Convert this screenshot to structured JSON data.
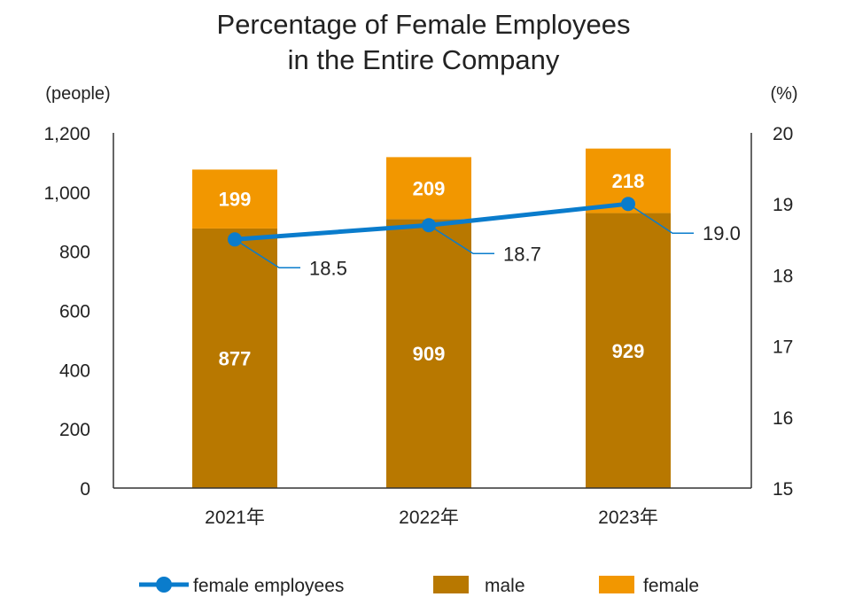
{
  "chart_data": {
    "type": "bar",
    "title_lines": [
      "Percentage of Female Employees",
      "in the Entire Company"
    ],
    "categories": [
      "2021年",
      "2022年",
      "2023年"
    ],
    "y_left": {
      "unit": "(people)",
      "ylim": [
        0,
        1200
      ],
      "ticks": [
        0,
        200,
        400,
        600,
        800,
        1000,
        1200
      ],
      "tick_labels": [
        "0",
        "200",
        "400",
        "600",
        "800",
        "1,000",
        "1,200"
      ]
    },
    "y_right": {
      "unit": "(%)",
      "ylim": [
        15,
        20
      ],
      "ticks": [
        15,
        16,
        17,
        18,
        19,
        20
      ]
    },
    "stacked": true,
    "series": [
      {
        "name": "male",
        "kind": "bar",
        "color": "#b87800",
        "values": [
          877,
          909,
          929
        ],
        "labels": [
          "877",
          "909",
          "929"
        ]
      },
      {
        "name": "female",
        "kind": "bar",
        "color": "#f29700",
        "values": [
          199,
          209,
          218
        ],
        "labels": [
          "199",
          "209",
          "218"
        ]
      },
      {
        "name": "female employees",
        "kind": "line",
        "axis": "right",
        "color": "#0a7ccc",
        "values": [
          18.5,
          18.7,
          19.0
        ],
        "labels": [
          "18.5",
          "18.7",
          "19.0"
        ]
      }
    ],
    "grid": false,
    "legend_position": "bottom"
  }
}
